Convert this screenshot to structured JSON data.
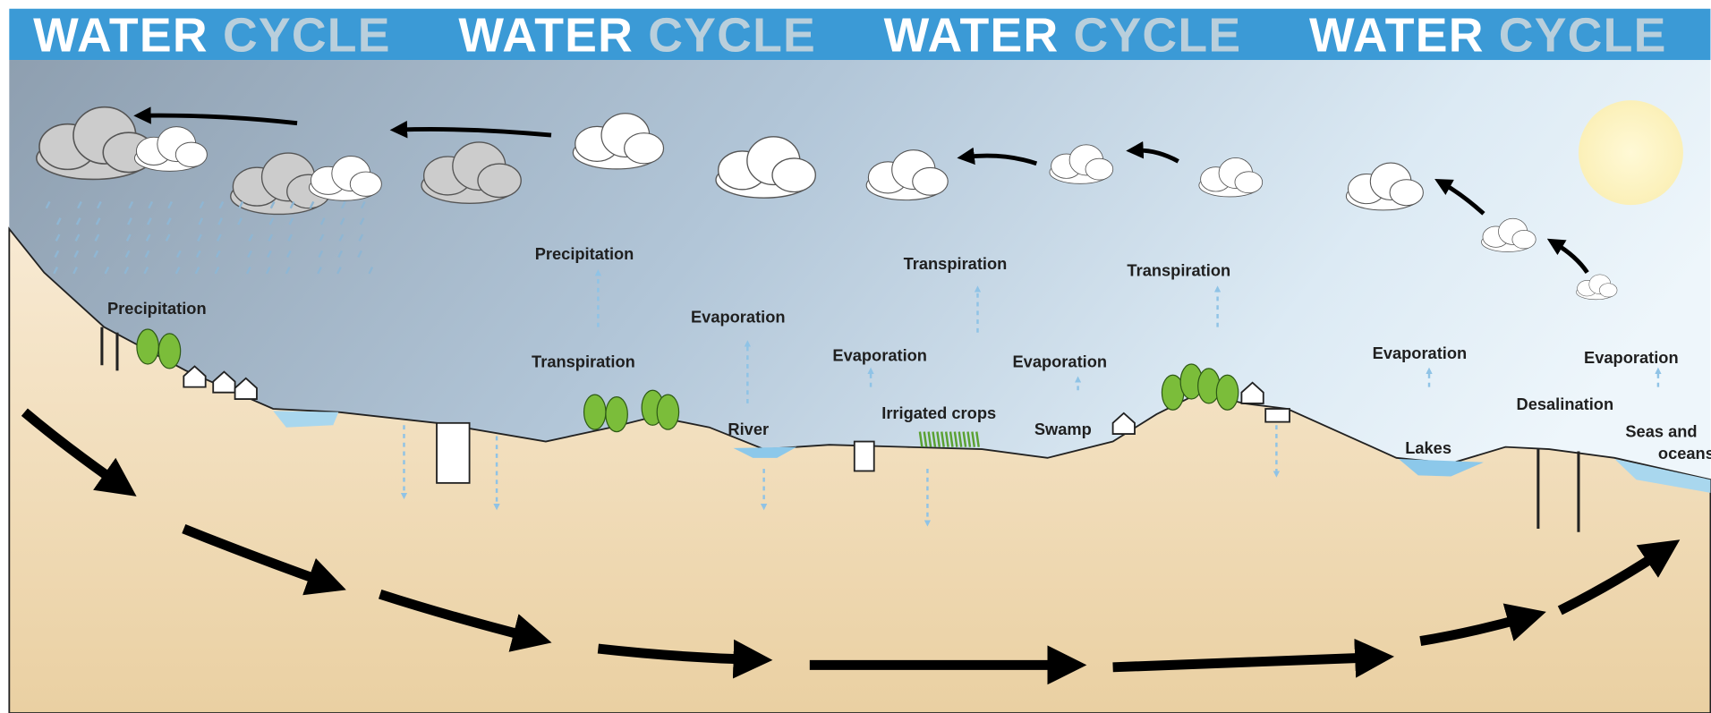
{
  "banner": [
    {
      "first": "WATER",
      "second": "CYCLE"
    },
    {
      "first": "WATER",
      "second": "CYCLE"
    },
    {
      "first": "WATER",
      "second": "CYCLE"
    },
    {
      "first": "WATER",
      "second": "CYCLE"
    }
  ],
  "labels": [
    "Precipitation",
    "Precipitation",
    "Evaporation",
    "Transpiration",
    "Transpiration",
    "Transpiration",
    "Evaporation",
    "Evaporation",
    "River",
    "Irrigated crops",
    "Swamp",
    "Evaporation",
    "Evaporation",
    "Desalination",
    "Lakes",
    "Seas and",
    "oceans"
  ]
}
